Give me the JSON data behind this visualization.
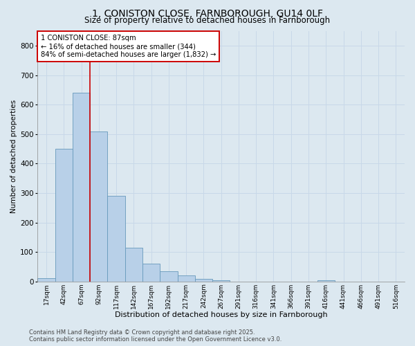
{
  "title_line1": "1, CONISTON CLOSE, FARNBOROUGH, GU14 0LF",
  "title_line2": "Size of property relative to detached houses in Farnborough",
  "xlabel": "Distribution of detached houses by size in Farnborough",
  "ylabel": "Number of detached properties",
  "categories": [
    "17sqm",
    "42sqm",
    "67sqm",
    "92sqm",
    "117sqm",
    "142sqm",
    "167sqm",
    "192sqm",
    "217sqm",
    "242sqm",
    "267sqm",
    "291sqm",
    "316sqm",
    "341sqm",
    "366sqm",
    "391sqm",
    "416sqm",
    "441sqm",
    "466sqm",
    "491sqm",
    "516sqm"
  ],
  "values": [
    10,
    450,
    640,
    510,
    290,
    115,
    60,
    35,
    20,
    8,
    5,
    0,
    0,
    0,
    0,
    0,
    5,
    0,
    0,
    0,
    0
  ],
  "bar_color": "#b8d0e8",
  "bar_edge_color": "#6699bb",
  "vline_color": "#cc0000",
  "vline_pos": 2.5,
  "annotation_box_text": "1 CONISTON CLOSE: 87sqm\n← 16% of detached houses are smaller (344)\n84% of semi-detached houses are larger (1,832) →",
  "annotation_box_facecolor": "white",
  "annotation_box_edgecolor": "#cc0000",
  "ylim": [
    0,
    850
  ],
  "yticks": [
    0,
    100,
    200,
    300,
    400,
    500,
    600,
    700,
    800
  ],
  "grid_color": "#c8d8e8",
  "background_color": "#dce8f0",
  "footer_text": "Contains HM Land Registry data © Crown copyright and database right 2025.\nContains public sector information licensed under the Open Government Licence v3.0.",
  "figsize": [
    6.0,
    5.0
  ],
  "dpi": 100
}
